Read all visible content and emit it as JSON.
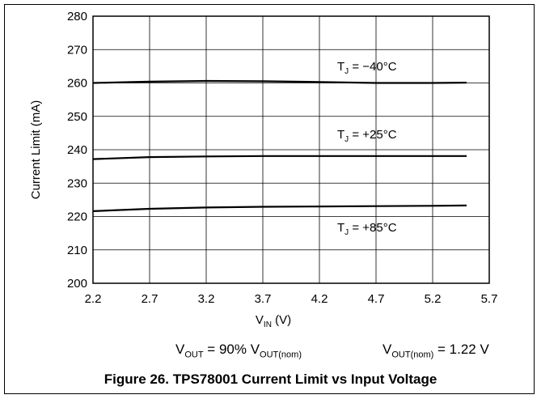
{
  "chart_data": {
    "type": "line",
    "title": "",
    "xlabel": {
      "main": "V",
      "sub": "IN",
      "unit": " (V)"
    },
    "ylabel": "Current Limit (mA)",
    "xlim": [
      2.2,
      5.7
    ],
    "ylim": [
      200,
      280
    ],
    "xticks": [
      "2.2",
      "2.7",
      "3.2",
      "3.7",
      "4.2",
      "4.7",
      "5.2",
      "5.7"
    ],
    "yticks": [
      "200",
      "210",
      "220",
      "230",
      "240",
      "250",
      "260",
      "270",
      "280"
    ],
    "grid": true,
    "series": [
      {
        "name": "TJ = −40°C",
        "label": {
          "main": "T",
          "sub": "J",
          "rest": " = −40°C"
        },
        "x": [
          2.2,
          2.7,
          3.2,
          3.7,
          4.2,
          4.7,
          5.2,
          5.5
        ],
        "y": [
          260.0,
          260.4,
          260.6,
          260.5,
          260.3,
          260.0,
          260.0,
          260.1
        ]
      },
      {
        "name": "TJ = +25°C",
        "label": {
          "main": "T",
          "sub": "J",
          "rest": " = +25°C"
        },
        "x": [
          2.2,
          2.7,
          3.2,
          3.7,
          4.2,
          4.7,
          5.2,
          5.5
        ],
        "y": [
          237.2,
          237.8,
          238.0,
          238.1,
          238.1,
          238.1,
          238.1,
          238.1
        ]
      },
      {
        "name": "TJ = +85°C",
        "label": {
          "main": "T",
          "sub": "J",
          "rest": " = +85°C"
        },
        "x": [
          2.2,
          2.7,
          3.2,
          3.7,
          4.2,
          4.7,
          5.2,
          5.5
        ],
        "y": [
          221.6,
          222.3,
          222.7,
          222.9,
          223.0,
          223.1,
          223.2,
          223.3
        ]
      }
    ]
  },
  "conditions": {
    "vout": {
      "main": "V",
      "sub": "OUT",
      "mid": " = 90% V",
      "sub2": "OUT(nom)"
    },
    "vnom": {
      "main": "V",
      "sub": "OUT(nom)",
      "rest": " = 1.22 V"
    }
  },
  "caption": "Figure 26. TPS78001 Current Limit vs Input Voltage",
  "colors": {
    "line": "#000000",
    "grid": "#000000",
    "background": "#ffffff"
  }
}
